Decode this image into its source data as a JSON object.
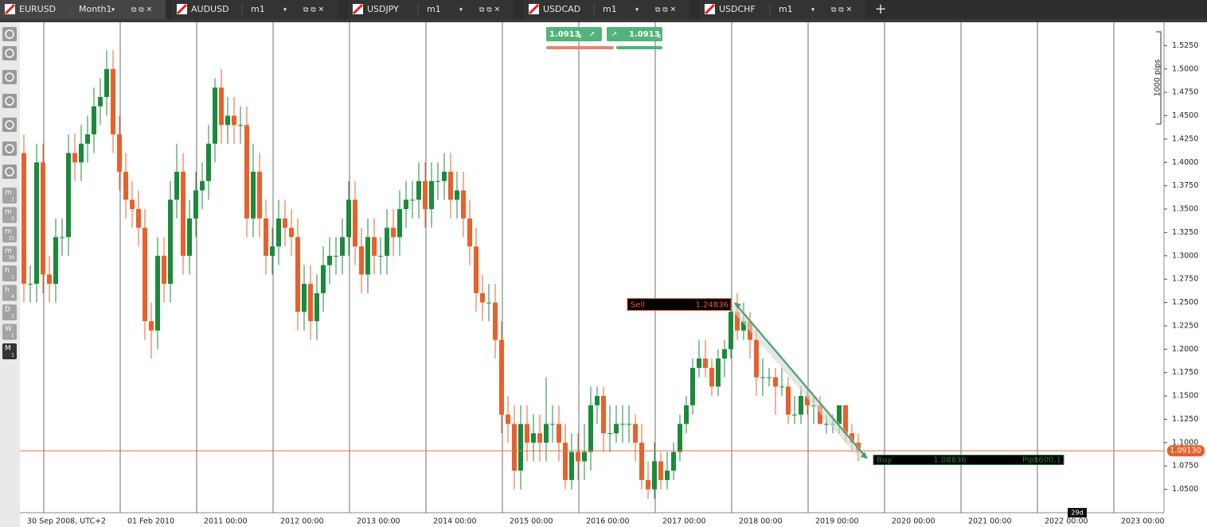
{
  "tabs": [
    {
      "symbol": "EURUSD",
      "period": "Month1"
    },
    {
      "symbol": "AUDUSD",
      "period": "m1"
    },
    {
      "symbol": "USDJPY",
      "period": "m1"
    },
    {
      "symbol": "USDCAD",
      "period": "m1"
    },
    {
      "symbol": "USDCHF",
      "period": "m1"
    }
  ],
  "toolbar": [
    {
      "unit": "m",
      "count": "1"
    },
    {
      "unit": "m",
      "count": "5"
    },
    {
      "unit": "m",
      "count": "15"
    },
    {
      "unit": "m",
      "count": "30"
    },
    {
      "unit": "h",
      "count": "1"
    },
    {
      "unit": "h",
      "count": "4"
    },
    {
      "unit": "D",
      "count": "1"
    },
    {
      "unit": "W",
      "count": "1"
    },
    {
      "unit": "M",
      "count": "1"
    }
  ],
  "quote": {
    "sell": {
      "price": "1.0913",
      "pipette": "8"
    },
    "buy": {
      "price": "1.0913",
      "pipette": "8"
    }
  },
  "chart_data": {
    "type": "candlestick",
    "up_color": "#1b8a3c",
    "down_color": "#e8612c",
    "open": [
      1.41,
      1.27,
      1.27,
      1.4,
      1.28,
      1.27,
      1.32,
      1.32,
      1.41,
      1.4,
      1.42,
      1.43,
      1.46,
      1.47,
      1.5,
      1.43,
      1.39,
      1.36,
      1.35,
      1.33,
      1.23,
      1.22,
      1.3,
      1.27,
      1.36,
      1.39,
      1.3,
      1.34,
      1.37,
      1.38,
      1.42,
      1.48,
      1.44,
      1.45,
      1.44,
      1.44,
      1.34,
      1.39,
      1.34,
      1.3,
      1.31,
      1.34,
      1.33,
      1.32,
      1.24,
      1.27,
      1.23,
      1.26,
      1.29,
      1.3,
      1.3,
      1.32,
      1.36,
      1.31,
      1.28,
      1.32,
      1.3,
      1.3,
      1.33,
      1.32,
      1.35,
      1.36,
      1.36,
      1.38,
      1.35,
      1.38,
      1.38,
      1.39,
      1.36,
      1.37,
      1.34,
      1.31,
      1.26,
      1.25,
      1.25,
      1.21,
      1.13,
      1.12,
      1.07,
      1.12,
      1.1,
      1.11,
      1.1,
      1.12,
      1.12,
      1.1,
      1.06,
      1.09,
      1.08,
      1.09,
      1.14,
      1.15,
      1.11,
      1.11,
      1.12,
      1.12,
      1.12,
      1.1,
      1.06,
      1.05,
      1.08,
      1.06,
      1.07,
      1.09,
      1.12,
      1.14,
      1.18,
      1.19,
      1.18,
      1.16,
      1.19,
      1.2,
      1.24,
      1.22,
      1.23,
      1.21,
      1.17,
      1.17,
      1.17,
      1.16,
      1.16,
      1.13,
      1.13,
      1.15,
      1.14,
      1.14,
      1.12,
      1.12,
      1.12,
      1.14,
      1.11,
      1.1
    ],
    "high": [
      1.43,
      1.29,
      1.42,
      1.42,
      1.3,
      1.34,
      1.34,
      1.43,
      1.43,
      1.44,
      1.45,
      1.48,
      1.49,
      1.52,
      1.52,
      1.45,
      1.41,
      1.38,
      1.37,
      1.35,
      1.25,
      1.32,
      1.32,
      1.38,
      1.42,
      1.41,
      1.36,
      1.39,
      1.4,
      1.44,
      1.49,
      1.5,
      1.47,
      1.47,
      1.46,
      1.46,
      1.42,
      1.41,
      1.36,
      1.33,
      1.36,
      1.36,
      1.35,
      1.34,
      1.29,
      1.29,
      1.28,
      1.31,
      1.32,
      1.32,
      1.34,
      1.38,
      1.38,
      1.33,
      1.34,
      1.34,
      1.32,
      1.35,
      1.35,
      1.37,
      1.38,
      1.38,
      1.4,
      1.4,
      1.4,
      1.4,
      1.41,
      1.41,
      1.39,
      1.39,
      1.36,
      1.33,
      1.28,
      1.27,
      1.27,
      1.23,
      1.15,
      1.14,
      1.14,
      1.14,
      1.13,
      1.13,
      1.17,
      1.14,
      1.14,
      1.12,
      1.11,
      1.11,
      1.12,
      1.16,
      1.16,
      1.16,
      1.14,
      1.14,
      1.14,
      1.14,
      1.13,
      1.12,
      1.08,
      1.1,
      1.09,
      1.09,
      1.1,
      1.13,
      1.15,
      1.19,
      1.21,
      1.21,
      1.19,
      1.2,
      1.21,
      1.25,
      1.26,
      1.25,
      1.24,
      1.22,
      1.19,
      1.18,
      1.18,
      1.18,
      1.17,
      1.15,
      1.16,
      1.16,
      1.15,
      1.15,
      1.13,
      1.13,
      1.14,
      1.14,
      1.12,
      1.11
    ],
    "low": [
      1.25,
      1.25,
      1.25,
      1.26,
      1.25,
      1.25,
      1.3,
      1.3,
      1.38,
      1.38,
      1.4,
      1.41,
      1.44,
      1.45,
      1.41,
      1.37,
      1.34,
      1.33,
      1.31,
      1.21,
      1.19,
      1.2,
      1.25,
      1.25,
      1.34,
      1.28,
      1.28,
      1.32,
      1.35,
      1.36,
      1.4,
      1.42,
      1.42,
      1.42,
      1.42,
      1.32,
      1.32,
      1.32,
      1.28,
      1.28,
      1.29,
      1.31,
      1.3,
      1.22,
      1.22,
      1.21,
      1.21,
      1.24,
      1.27,
      1.28,
      1.28,
      1.3,
      1.29,
      1.26,
      1.26,
      1.28,
      1.28,
      1.28,
      1.3,
      1.3,
      1.33,
      1.34,
      1.34,
      1.33,
      1.33,
      1.36,
      1.36,
      1.34,
      1.34,
      1.32,
      1.29,
      1.24,
      1.23,
      1.23,
      1.19,
      1.11,
      1.1,
      1.05,
      1.05,
      1.08,
      1.08,
      1.08,
      1.08,
      1.1,
      1.08,
      1.05,
      1.05,
      1.06,
      1.06,
      1.07,
      1.12,
      1.09,
      1.09,
      1.1,
      1.1,
      1.1,
      1.08,
      1.05,
      1.04,
      1.04,
      1.05,
      1.05,
      1.06,
      1.08,
      1.11,
      1.13,
      1.17,
      1.17,
      1.15,
      1.15,
      1.17,
      1.19,
      1.21,
      1.21,
      1.19,
      1.15,
      1.15,
      1.16,
      1.13,
      1.15,
      1.12,
      1.12,
      1.12,
      1.13,
      1.12,
      1.12,
      1.11,
      1.11,
      1.11,
      1.1,
      1.09,
      1.08
    ],
    "close": [
      1.27,
      1.27,
      1.4,
      1.28,
      1.27,
      1.32,
      1.32,
      1.41,
      1.4,
      1.42,
      1.43,
      1.46,
      1.47,
      1.5,
      1.43,
      1.39,
      1.36,
      1.35,
      1.33,
      1.23,
      1.22,
      1.3,
      1.27,
      1.36,
      1.39,
      1.3,
      1.34,
      1.37,
      1.38,
      1.42,
      1.48,
      1.44,
      1.45,
      1.44,
      1.44,
      1.34,
      1.39,
      1.34,
      1.3,
      1.31,
      1.34,
      1.33,
      1.32,
      1.24,
      1.27,
      1.23,
      1.26,
      1.29,
      1.3,
      1.3,
      1.32,
      1.36,
      1.31,
      1.28,
      1.32,
      1.3,
      1.3,
      1.33,
      1.32,
      1.35,
      1.36,
      1.36,
      1.38,
      1.35,
      1.38,
      1.38,
      1.39,
      1.36,
      1.37,
      1.34,
      1.31,
      1.26,
      1.25,
      1.25,
      1.21,
      1.13,
      1.12,
      1.07,
      1.12,
      1.1,
      1.11,
      1.1,
      1.12,
      1.12,
      1.1,
      1.06,
      1.09,
      1.08,
      1.09,
      1.14,
      1.15,
      1.11,
      1.11,
      1.12,
      1.12,
      1.12,
      1.1,
      1.06,
      1.05,
      1.08,
      1.06,
      1.07,
      1.09,
      1.12,
      1.14,
      1.18,
      1.19,
      1.18,
      1.16,
      1.19,
      1.2,
      1.24,
      1.22,
      1.23,
      1.21,
      1.17,
      1.17,
      1.17,
      1.16,
      1.16,
      1.13,
      1.13,
      1.15,
      1.14,
      1.14,
      1.12,
      1.12,
      1.12,
      1.14,
      1.11,
      1.1,
      1.09
    ],
    "ylim": [
      1.025,
      1.55
    ],
    "yticks": [
      {
        "value": 1.05,
        "label": "1.0500"
      },
      {
        "value": 1.075,
        "label": "1.0750"
      },
      {
        "value": 1.1,
        "label": "1.1000"
      },
      {
        "value": 1.125,
        "label": "1.1250"
      },
      {
        "value": 1.15,
        "label": "1.1500"
      },
      {
        "value": 1.175,
        "label": "1.1750"
      },
      {
        "value": 1.2,
        "label": "1.2000"
      },
      {
        "value": 1.225,
        "label": "1.2250"
      },
      {
        "value": 1.25,
        "label": "1.2500"
      },
      {
        "value": 1.275,
        "label": "1.2750"
      },
      {
        "value": 1.3,
        "label": "1.3000"
      },
      {
        "value": 1.325,
        "label": "1.3250"
      },
      {
        "value": 1.35,
        "label": "1.3500"
      },
      {
        "value": 1.375,
        "label": "1.3750"
      },
      {
        "value": 1.4,
        "label": "1.4000"
      },
      {
        "value": 1.425,
        "label": "1.4250"
      },
      {
        "value": 1.45,
        "label": "1.4500"
      },
      {
        "value": 1.475,
        "label": "1.4750"
      },
      {
        "value": 1.5,
        "label": "1.5000"
      },
      {
        "value": 1.525,
        "label": "1.5250"
      }
    ],
    "x_labels": [
      "30 Sep 2008, UTC+2",
      "01 Feb 2010",
      "2011 00:00",
      "2012 00:00",
      "2013 00:00",
      "2014 00:00",
      "2015 00:00",
      "2016 00:00",
      "2017 00:00",
      "2018 00:00",
      "2019 00:00",
      "2020 00:00",
      "2021 00:00",
      "2022 00:00",
      "2023 00:00"
    ],
    "current_price": {
      "value": 1.0913,
      "label": "1.09130"
    },
    "sell_order": {
      "side": "Sell",
      "price": 1.24836
    },
    "buy_order": {
      "side": "Buy",
      "price": 1.08836,
      "pips_text": "Pips",
      "pips": 1600.1
    },
    "pips_scale": "1000 pips",
    "countdown": "29d"
  }
}
